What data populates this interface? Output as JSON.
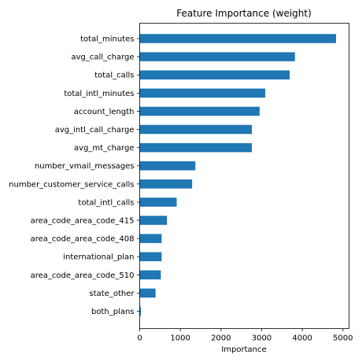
{
  "chart_data": {
    "type": "bar",
    "orientation": "horizontal",
    "title": "Feature Importance (weight)",
    "xlabel": "Importance",
    "ylabel": "",
    "xlim": [
      0,
      5150
    ],
    "xticks": [
      0,
      1000,
      2000,
      3000,
      4000,
      5000
    ],
    "bar_color": "#1f77b4",
    "grid": false,
    "categories": [
      "total_minutes",
      "avg_call_charge",
      "total_calls",
      "total_intl_minutes",
      "account_length",
      "avg_intl_call_charge",
      "avg_mt_charge",
      "number_vmail_messages",
      "number_customer_service_calls",
      "total_intl_calls",
      "area_code_area_code_415",
      "area_code_area_code_408",
      "international_plan",
      "area_code_area_code_510",
      "state_other",
      "both_plans"
    ],
    "values": [
      4830,
      3820,
      3690,
      3090,
      2950,
      2760,
      2760,
      1370,
      1290,
      910,
      670,
      540,
      540,
      520,
      390,
      30
    ]
  }
}
